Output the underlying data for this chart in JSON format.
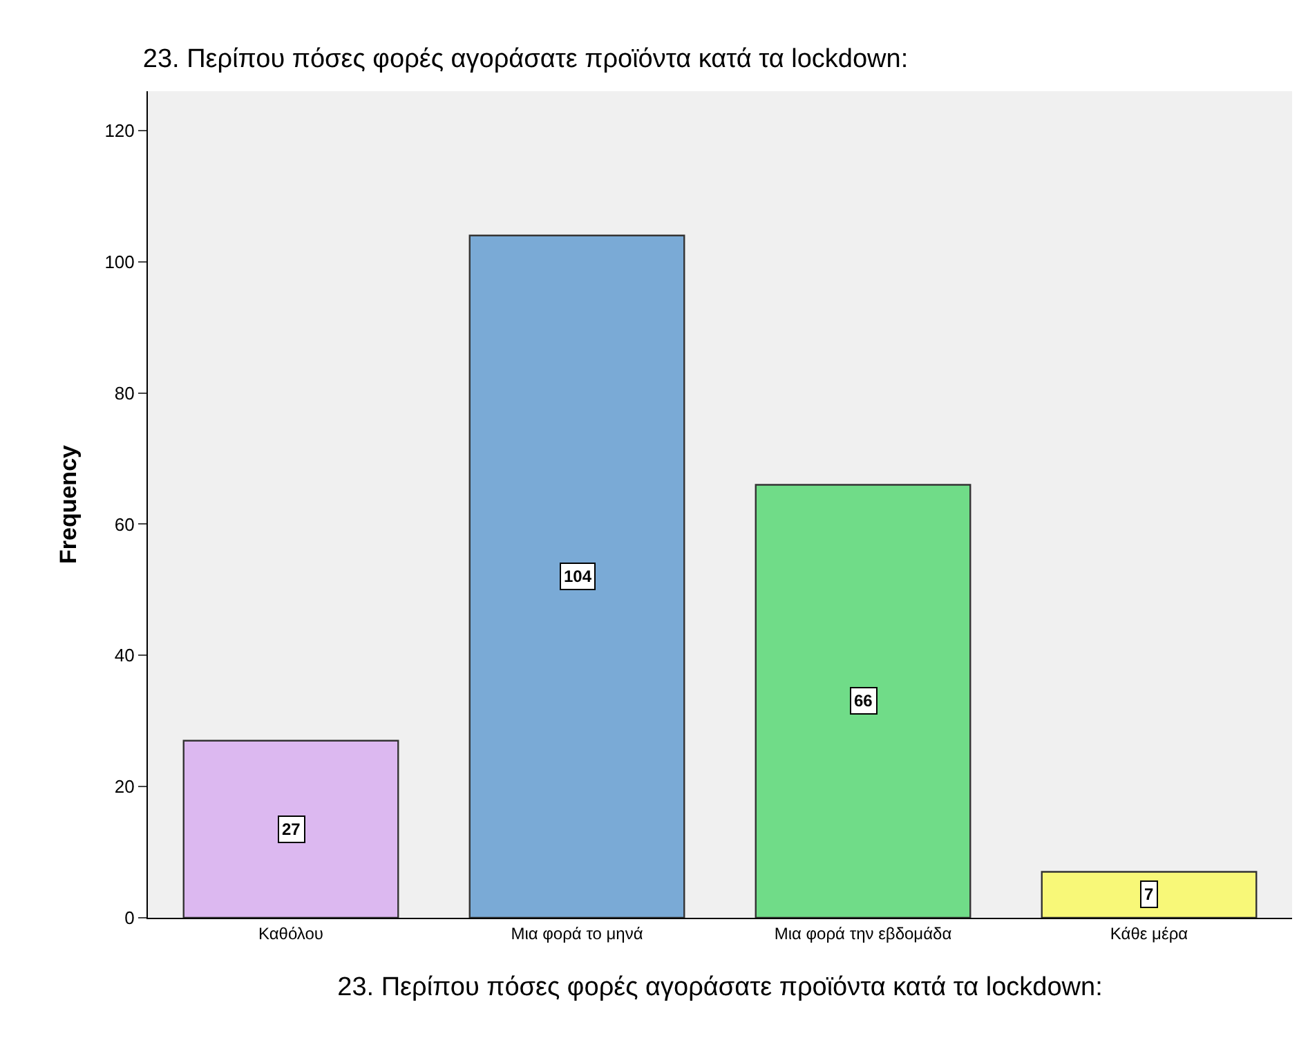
{
  "chart_data": {
    "type": "bar",
    "title": "23. Περίπου πόσες φορές αγοράσατε προϊόντα κατά τα lockdown:",
    "xlabel": "23. Περίπου πόσες φορές αγοράσατε προϊόντα κατά τα lockdown:",
    "ylabel": "Frequency",
    "categories": [
      "Καθόλου",
      "Μια φορά το μηνά",
      "Μια φορά την εβδομάδα",
      "Κάθε μέρα"
    ],
    "values": [
      27,
      104,
      66,
      7
    ],
    "colors": [
      "#dcb8f0",
      "#7aaad6",
      "#70dc88",
      "#f8f878"
    ],
    "ylim": [
      0,
      126
    ],
    "yticks": [
      0,
      20,
      40,
      60,
      80,
      100,
      120
    ],
    "grid": false,
    "legend": false,
    "data_labels": true
  }
}
